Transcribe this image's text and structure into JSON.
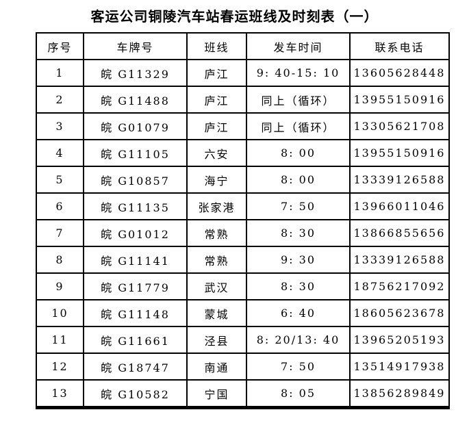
{
  "title": "客运公司铜陵汽车站春运班线及时刻表（一）",
  "table": {
    "headers": [
      "序号",
      "车牌号",
      "班线",
      "发车时间",
      "联系电话"
    ],
    "rows": [
      [
        "1",
        "皖 G11329",
        "庐江",
        "9: 40-15: 10",
        "13605628448"
      ],
      [
        "2",
        "皖 G11488",
        "庐江",
        "同上（循环）",
        "13955150916"
      ],
      [
        "3",
        "皖 G01079",
        "庐江",
        "同上（循环）",
        "13305621708"
      ],
      [
        "4",
        "皖 G11105",
        "六安",
        "8: 00",
        "13955150916"
      ],
      [
        "5",
        "皖 G10857",
        "海宁",
        "8: 00",
        "13339126588"
      ],
      [
        "6",
        "皖 G11135",
        "张家港",
        "7: 50",
        "13966011046"
      ],
      [
        "7",
        "皖 G01012",
        "常熟",
        "8: 30",
        "13866855656"
      ],
      [
        "8",
        "皖 G11141",
        "常熟",
        "9: 30",
        "13339126588"
      ],
      [
        "9",
        "皖 G11779",
        "武汉",
        "8: 30",
        "18756217092"
      ],
      [
        "10",
        "皖 G11148",
        "蒙城",
        "6: 40",
        "18605623678"
      ],
      [
        "11",
        "皖 G11661",
        "泾县",
        "8: 20/13: 40",
        "13965205193"
      ],
      [
        "12",
        "皖 G18747",
        "南通",
        "7: 50",
        "13514917938"
      ],
      [
        "13",
        "皖 G10582",
        "宁国",
        "8: 05",
        "13856289849"
      ]
    ]
  }
}
